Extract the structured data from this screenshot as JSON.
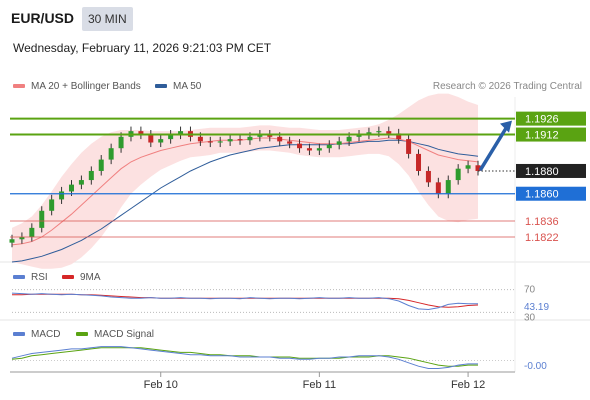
{
  "header": {
    "pair": "EUR/USD",
    "timeframe": "30 MIN",
    "datetime": "Wednesday, February 11, 2026 9:21:03 PM CET",
    "copyright": "Research © 2026 Trading Central"
  },
  "colors": {
    "ma20": "#f08080",
    "bollinger_fill": "#fbdcdc",
    "ma50": "#2f5d9a",
    "resistance": "#5aa312",
    "current": "#222222",
    "pivot": "#1f6fd6",
    "support": "#d9534f",
    "rsi": "#5b7fd1",
    "rsi_ma": "#d62728",
    "macd": "#5b7fd1",
    "macd_signal": "#5aa312",
    "arrow": "#2a5fa8",
    "candle_up": "#2e9b2e",
    "candle_down": "#c62828"
  },
  "legend": {
    "main": [
      {
        "label": "MA 20 + Bollinger Bands",
        "color": "#f08080"
      },
      {
        "label": "MA 50",
        "color": "#2f5d9a"
      }
    ],
    "rsi": [
      {
        "label": "RSI",
        "color": "#5b7fd1"
      },
      {
        "label": "9MA",
        "color": "#d62728"
      }
    ],
    "macd": [
      {
        "label": "MACD",
        "color": "#5b7fd1"
      },
      {
        "label": "MACD Signal",
        "color": "#5aa312"
      }
    ]
  },
  "chart_data": [
    {
      "type": "line",
      "panel": "price",
      "yrange": [
        1.18,
        1.1945
      ],
      "levels": [
        {
          "label": "1.1926",
          "value": 1.1926,
          "kind": "resistance"
        },
        {
          "label": "1.1912",
          "value": 1.1912,
          "kind": "resistance"
        },
        {
          "label": "1.1880",
          "value": 1.188,
          "kind": "current"
        },
        {
          "label": "1.1860",
          "value": 1.186,
          "kind": "pivot"
        },
        {
          "label": "1.1836",
          "value": 1.1836,
          "kind": "support"
        },
        {
          "label": "1.1822",
          "value": 1.1822,
          "kind": "support"
        }
      ],
      "x_ticks": [
        "Feb 10",
        "Feb 11",
        "Feb 12"
      ],
      "close": [
        1.182,
        1.1822,
        1.183,
        1.1845,
        1.1855,
        1.1862,
        1.1868,
        1.1872,
        1.188,
        1.189,
        1.19,
        1.191,
        1.1915,
        1.1912,
        1.1905,
        1.1908,
        1.1912,
        1.1915,
        1.191,
        1.1906,
        1.1905,
        1.1906,
        1.1908,
        1.1907,
        1.191,
        1.1912,
        1.191,
        1.1906,
        1.1904,
        1.19,
        1.1898,
        1.19,
        1.1903,
        1.1906,
        1.191,
        1.1912,
        1.1914,
        1.1915,
        1.1913,
        1.1908,
        1.1895,
        1.188,
        1.187,
        1.186,
        1.1872,
        1.1882,
        1.1885,
        1.188
      ],
      "ma20": [
        1.1815,
        1.1816,
        1.1818,
        1.1822,
        1.1828,
        1.1835,
        1.1842,
        1.185,
        1.1858,
        1.1866,
        1.1874,
        1.1882,
        1.1888,
        1.1892,
        1.1895,
        1.1898,
        1.19,
        1.1902,
        1.1904,
        1.1905,
        1.1906,
        1.1907,
        1.1907,
        1.1907,
        1.1908,
        1.1909,
        1.1909,
        1.1908,
        1.1907,
        1.1906,
        1.1905,
        1.1904,
        1.1904,
        1.1904,
        1.1905,
        1.1906,
        1.1907,
        1.1908,
        1.1909,
        1.1908,
        1.1906,
        1.1902,
        1.1898,
        1.1894,
        1.1892,
        1.189,
        1.1889,
        1.1888
      ],
      "ma50": [
        1.18,
        1.1801,
        1.1803,
        1.1805,
        1.1808,
        1.1811,
        1.1815,
        1.1819,
        1.1824,
        1.1829,
        1.1835,
        1.1841,
        1.1847,
        1.1853,
        1.1859,
        1.1865,
        1.187,
        1.1875,
        1.188,
        1.1884,
        1.1888,
        1.1891,
        1.1894,
        1.1896,
        1.1898,
        1.19,
        1.1901,
        1.1902,
        1.1903,
        1.1903,
        1.1903,
        1.1903,
        1.1903,
        1.1904,
        1.1904,
        1.1905,
        1.1906,
        1.1906,
        1.1907,
        1.1907,
        1.1906,
        1.1904,
        1.1902,
        1.1899,
        1.1897,
        1.1895,
        1.1894,
        1.1893
      ],
      "bb_width": [
        0.0015,
        0.0018,
        0.0022,
        0.0028,
        0.0034,
        0.004,
        0.0044,
        0.0046,
        0.0046,
        0.0044,
        0.004,
        0.0034,
        0.0028,
        0.0024,
        0.002,
        0.0017,
        0.0015,
        0.0013,
        0.0012,
        0.0012,
        0.0012,
        0.0011,
        0.0011,
        0.0011,
        0.0011,
        0.0011,
        0.0011,
        0.0011,
        0.0011,
        0.0012,
        0.0012,
        0.0012,
        0.0012,
        0.0012,
        0.0012,
        0.0012,
        0.0012,
        0.0013,
        0.0016,
        0.0022,
        0.003,
        0.004,
        0.0048,
        0.0054,
        0.0056,
        0.0055,
        0.0052,
        0.005
      ]
    },
    {
      "type": "line",
      "panel": "rsi",
      "tick_labels": [
        "70",
        "43.19",
        "30"
      ],
      "ylim": [
        20,
        80
      ],
      "series": [
        {
          "name": "RSI",
          "values": [
            64,
            63,
            62,
            63,
            62,
            61,
            62,
            61,
            60,
            59,
            57,
            56,
            55,
            55,
            56,
            55,
            55,
            56,
            55,
            55,
            54,
            55,
            55,
            54,
            56,
            55,
            54,
            55,
            55,
            54,
            55,
            56,
            55,
            55,
            56,
            55,
            55,
            56,
            54,
            50,
            42,
            36,
            35,
            38,
            44,
            46,
            45,
            45
          ]
        },
        {
          "name": "9MA",
          "values": [
            61,
            61,
            62,
            62,
            62,
            62,
            62,
            61,
            61,
            60,
            59,
            58,
            57,
            56,
            56,
            55,
            55,
            55,
            55,
            55,
            55,
            55,
            55,
            55,
            55,
            55,
            55,
            55,
            55,
            55,
            55,
            55,
            55,
            55,
            55,
            55,
            55,
            55,
            55,
            54,
            51,
            47,
            43,
            40,
            39,
            40,
            42,
            43
          ]
        }
      ]
    },
    {
      "type": "line",
      "panel": "macd",
      "tick_labels": [
        "-0.00"
      ],
      "ylim": [
        -0.001,
        0.0016
      ],
      "series": [
        {
          "name": "MACD",
          "values": [
            0.0002,
            0.0004,
            0.0006,
            0.0007,
            0.0008,
            0.0009,
            0.001,
            0.001,
            0.0011,
            0.0012,
            0.0012,
            0.0012,
            0.0011,
            0.001,
            0.0009,
            0.0008,
            0.0007,
            0.0006,
            0.0005,
            0.0005,
            0.0004,
            0.0004,
            0.0004,
            0.0003,
            0.0003,
            0.0003,
            0.0003,
            0.0002,
            0.0002,
            0.0001,
            0.0001,
            0.0002,
            0.0002,
            0.0003,
            0.0003,
            0.0004,
            0.0004,
            0.0004,
            0.0003,
            0.0001,
            -0.0002,
            -0.0005,
            -0.0007,
            -0.0007,
            -0.0006,
            -0.0004,
            -0.0003,
            -0.0003
          ]
        },
        {
          "name": "MACD Signal",
          "values": [
            0.0001,
            0.0002,
            0.0004,
            0.0005,
            0.0006,
            0.0007,
            0.0008,
            0.0009,
            0.001,
            0.0011,
            0.0011,
            0.0011,
            0.0011,
            0.0011,
            0.001,
            0.0009,
            0.0008,
            0.0007,
            0.0007,
            0.0006,
            0.0005,
            0.0005,
            0.0004,
            0.0004,
            0.0004,
            0.0003,
            0.0003,
            0.0003,
            0.0003,
            0.0002,
            0.0002,
            0.0002,
            0.0002,
            0.0002,
            0.0003,
            0.0003,
            0.0003,
            0.0004,
            0.0004,
            0.0003,
            0.0002,
            0.0,
            -0.0002,
            -0.0004,
            -0.0005,
            -0.0005,
            -0.0004,
            -0.0004
          ]
        }
      ]
    }
  ]
}
